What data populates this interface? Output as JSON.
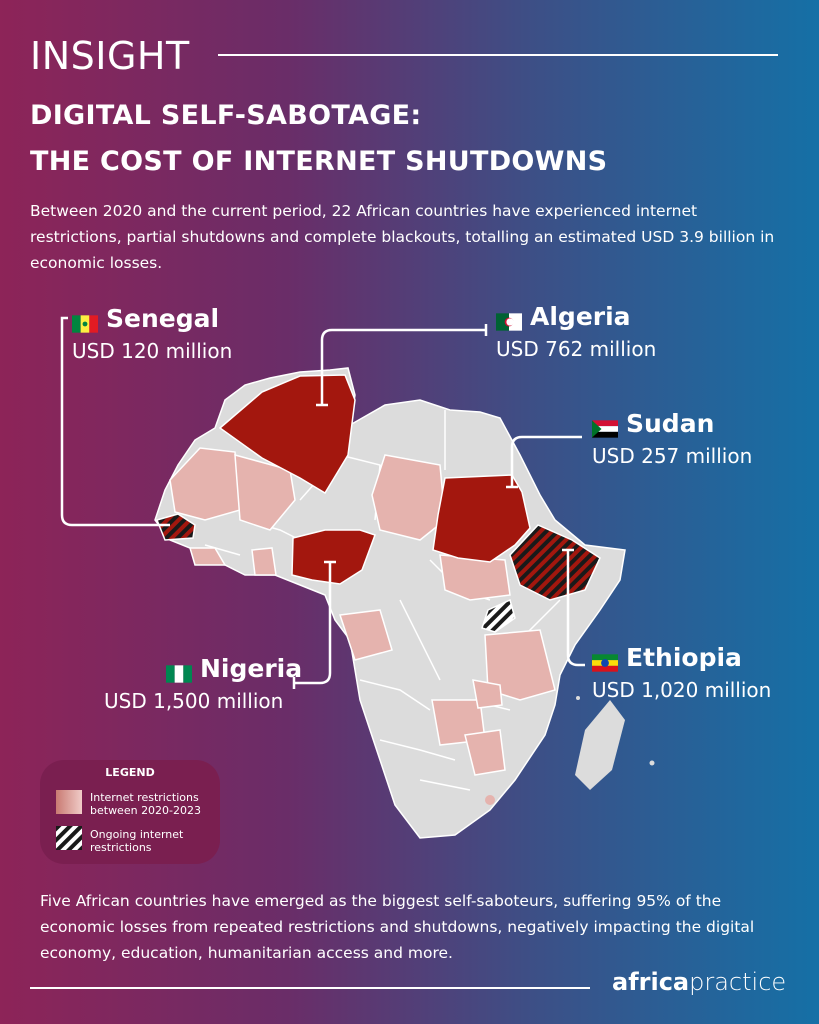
{
  "header": {
    "kicker": "INSIGHT",
    "title_line1": "DIGITAL SELF-SABOTAGE:",
    "title_line2": "THE COST OF INTERNET SHUTDOWNS"
  },
  "intro_text": "Between 2020 and the current period, 22 African countries have experienced internet restrictions, partial shutdowns and complete blackouts, totalling an estimated USD 3.9 billion in economic losses.",
  "callouts": [
    {
      "country": "Senegal",
      "value": "USD 120 million",
      "flag": "senegal-flag-icon"
    },
    {
      "country": "Algeria",
      "value": "USD 762 million",
      "flag": "algeria-flag-icon"
    },
    {
      "country": "Sudan",
      "value": "USD 257 million",
      "flag": "sudan-flag-icon"
    },
    {
      "country": "Ethiopia",
      "value": "USD 1,020 million",
      "flag": "ethiopia-flag-icon"
    },
    {
      "country": "Nigeria",
      "value": "USD 1,500 million",
      "flag": "nigeria-flag-icon"
    }
  ],
  "legend": {
    "title": "LEGEND",
    "items": [
      {
        "label": "Internet restrictions between 2020-2023",
        "swatch": "gradient"
      },
      {
        "label": "Ongoing internet restrictions",
        "swatch": "hatched"
      }
    ]
  },
  "outro_text": "Five African countries have emerged as the biggest self-saboteurs, suffering 95% of the economic losses from repeated restrictions and shutdowns, negatively impacting the digital economy, education, humanitarian access and more.",
  "logo": {
    "bold": "africa",
    "light": "practice"
  },
  "colors": {
    "major_loss": "#a3170e",
    "restricted": "#e5b3ae",
    "no_data": "#dcdcdc",
    "hatch_dark": "#1a1a1a",
    "hatch_red": "#a3170e"
  }
}
